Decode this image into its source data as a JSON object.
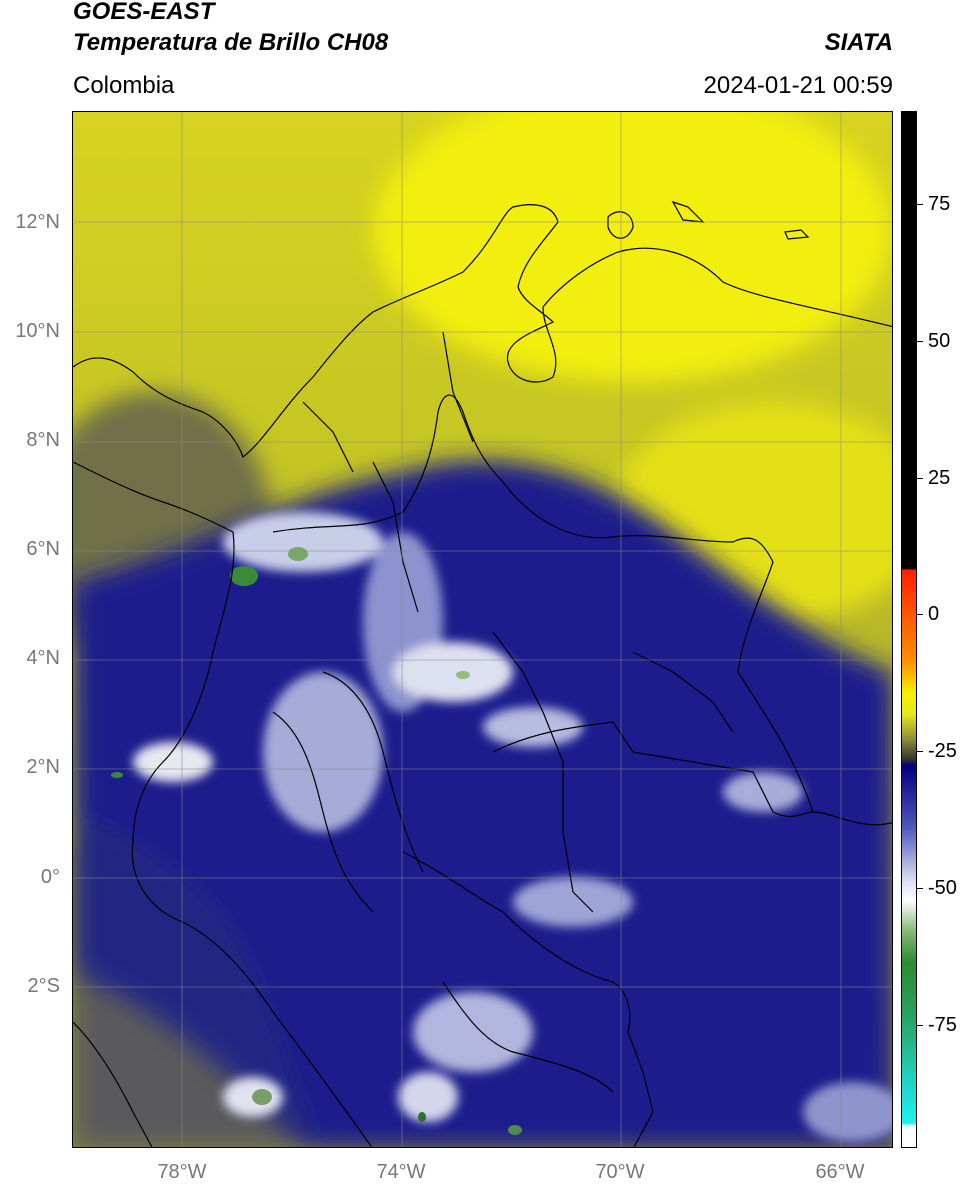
{
  "header": {
    "satellite": "GOES-EAST",
    "product": "Temperatura de Brillo CH08",
    "agency": "SIATA",
    "region": "Colombia",
    "datetime": "2024-01-21 00:59"
  },
  "map": {
    "lat_ticks": [
      "12°N",
      "10°N",
      "8°N",
      "6°N",
      "4°N",
      "2°N",
      "0°",
      "2°S"
    ],
    "lon_ticks": [
      "78°W",
      "74°W",
      "70°W",
      "66°W"
    ],
    "colors": {
      "cloud_tops_coldest": "#3a8a3a",
      "deep_convection": "#1a1f8c",
      "clear_moist": "#c8c820",
      "clear_dry": "#f2ee10",
      "border": "#000000"
    }
  },
  "colorbar": {
    "ticks": [
      "75",
      "50",
      "25",
      "0",
      "-25",
      "-50",
      "-75"
    ]
  }
}
